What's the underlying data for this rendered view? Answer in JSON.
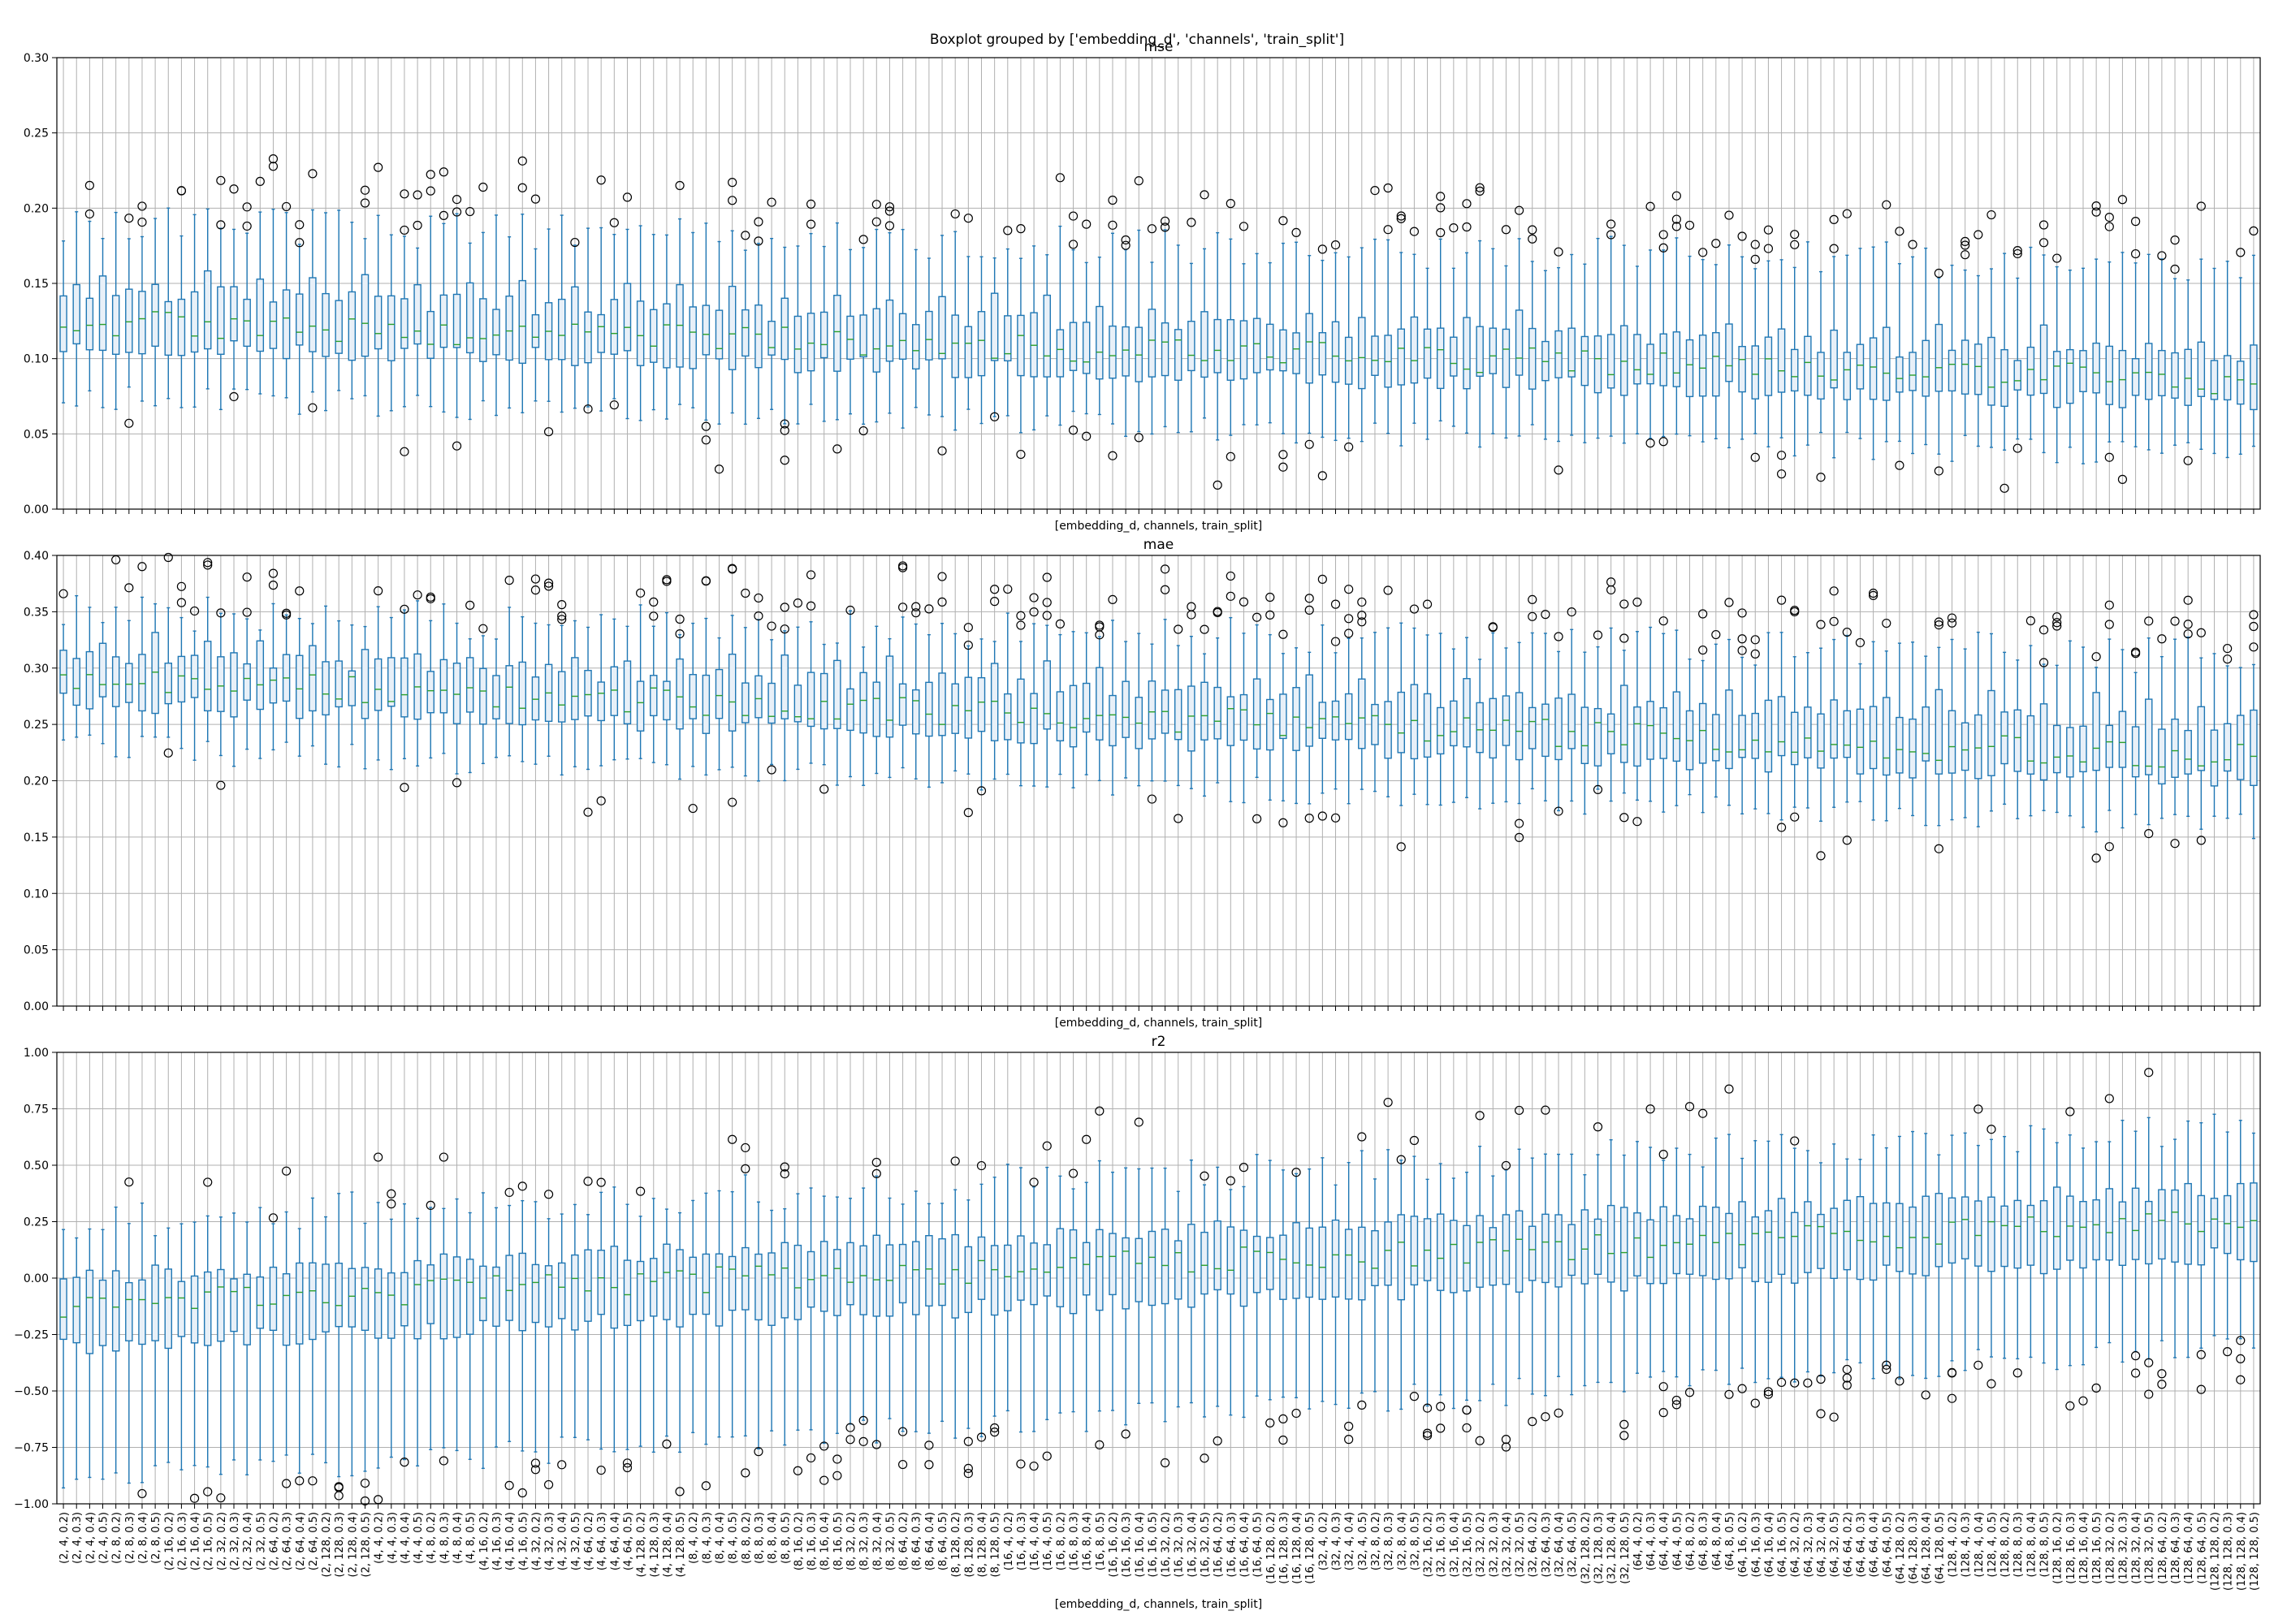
{
  "figure": {
    "suptitle": "Boxplot grouped by ['embedding_d', 'channels', 'train_split']"
  },
  "style": {
    "box_edge": "#1f77b4",
    "box_fill": "#e8f0f8",
    "median": "#2ca02c",
    "outlier": "#000000",
    "grid": "#b0b0b0"
  },
  "chart_data": [
    {
      "type": "box",
      "title": "mse",
      "xlabel": "[embedding_d, channels, train_split]",
      "ylabel": "",
      "ylim": [
        0.0,
        0.3
      ],
      "yticks": [
        "0.00",
        "0.05",
        "0.10",
        "0.15",
        "0.20",
        "0.25",
        "0.30"
      ],
      "grid": true,
      "trend": {
        "start": {
          "q1": 0.11,
          "median": 0.125,
          "q3": 0.145,
          "whislo": 0.075,
          "whishi": 0.19
        },
        "end": {
          "q1": 0.07,
          "median": 0.085,
          "q3": 0.1,
          "whislo": 0.035,
          "whishi": 0.16
        }
      }
    },
    {
      "type": "box",
      "title": "mae",
      "xlabel": "[embedding_d, channels, train_split]",
      "ylabel": "",
      "ylim": [
        0.0,
        0.4
      ],
      "yticks": [
        "0.00",
        "0.05",
        "0.10",
        "0.15",
        "0.20",
        "0.25",
        "0.30",
        "0.35",
        "0.40"
      ],
      "grid": true,
      "trend": {
        "start": {
          "q1": 0.27,
          "median": 0.29,
          "q3": 0.31,
          "whislo": 0.23,
          "whishi": 0.35
        },
        "end": {
          "q1": 0.2,
          "median": 0.22,
          "q3": 0.25,
          "whislo": 0.16,
          "whishi": 0.31
        }
      }
    },
    {
      "type": "box",
      "title": "r2",
      "xlabel": "[embedding_d, channels, train_split]",
      "ylabel": "",
      "ylim": [
        -1.0,
        1.0
      ],
      "yticks": [
        "−1.00",
        "−0.75",
        "−0.50",
        "−0.25",
        "0.00",
        "0.25",
        "0.50",
        "0.75",
        "1.00"
      ],
      "grid": true,
      "trend": {
        "start": {
          "q1": -0.3,
          "median": -0.12,
          "q3": 0.0,
          "whislo": -0.9,
          "whishi": 0.25
        },
        "end": {
          "q1": 0.1,
          "median": 0.25,
          "q3": 0.4,
          "whislo": -0.3,
          "whishi": 0.65
        }
      }
    }
  ],
  "categories": [
    "(2, 4, 0.2)",
    "(2, 4, 0.3)",
    "(2, 4, 0.4)",
    "(2, 4, 0.5)",
    "(2, 8, 0.2)",
    "(2, 8, 0.3)",
    "(2, 8, 0.4)",
    "(2, 8, 0.5)",
    "(2, 16, 0.2)",
    "(2, 16, 0.3)",
    "(2, 16, 0.4)",
    "(2, 16, 0.5)",
    "(2, 32, 0.2)",
    "(2, 32, 0.3)",
    "(2, 32, 0.4)",
    "(2, 32, 0.5)",
    "(2, 64, 0.2)",
    "(2, 64, 0.3)",
    "(2, 64, 0.4)",
    "(2, 64, 0.5)",
    "(2, 128, 0.2)",
    "(2, 128, 0.3)",
    "(2, 128, 0.4)",
    "(2, 128, 0.5)",
    "(4, 4, 0.2)",
    "(4, 4, 0.3)",
    "(4, 4, 0.4)",
    "(4, 4, 0.5)",
    "(4, 8, 0.2)",
    "(4, 8, 0.3)",
    "(4, 8, 0.4)",
    "(4, 8, 0.5)",
    "(4, 16, 0.2)",
    "(4, 16, 0.3)",
    "(4, 16, 0.4)",
    "(4, 16, 0.5)",
    "(4, 32, 0.2)",
    "(4, 32, 0.3)",
    "(4, 32, 0.4)",
    "(4, 32, 0.5)",
    "(4, 64, 0.2)",
    "(4, 64, 0.3)",
    "(4, 64, 0.4)",
    "(4, 64, 0.5)",
    "(4, 128, 0.2)",
    "(4, 128, 0.3)",
    "(4, 128, 0.4)",
    "(4, 128, 0.5)",
    "(8, 4, 0.2)",
    "(8, 4, 0.3)",
    "(8, 4, 0.4)",
    "(8, 4, 0.5)",
    "(8, 8, 0.2)",
    "(8, 8, 0.3)",
    "(8, 8, 0.4)",
    "(8, 8, 0.5)",
    "(8, 16, 0.2)",
    "(8, 16, 0.3)",
    "(8, 16, 0.4)",
    "(8, 16, 0.5)",
    "(8, 32, 0.2)",
    "(8, 32, 0.3)",
    "(8, 32, 0.4)",
    "(8, 32, 0.5)",
    "(8, 64, 0.2)",
    "(8, 64, 0.3)",
    "(8, 64, 0.4)",
    "(8, 64, 0.5)",
    "(8, 128, 0.2)",
    "(8, 128, 0.3)",
    "(8, 128, 0.4)",
    "(8, 128, 0.5)",
    "(16, 4, 0.2)",
    "(16, 4, 0.3)",
    "(16, 4, 0.4)",
    "(16, 4, 0.5)",
    "(16, 8, 0.2)",
    "(16, 8, 0.3)",
    "(16, 8, 0.4)",
    "(16, 8, 0.5)",
    "(16, 16, 0.2)",
    "(16, 16, 0.3)",
    "(16, 16, 0.4)",
    "(16, 16, 0.5)",
    "(16, 32, 0.2)",
    "(16, 32, 0.3)",
    "(16, 32, 0.4)",
    "(16, 32, 0.5)",
    "(16, 64, 0.2)",
    "(16, 64, 0.3)",
    "(16, 64, 0.4)",
    "(16, 64, 0.5)",
    "(16, 128, 0.2)",
    "(16, 128, 0.3)",
    "(16, 128, 0.4)",
    "(16, 128, 0.5)",
    "(32, 4, 0.2)",
    "(32, 4, 0.3)",
    "(32, 4, 0.4)",
    "(32, 4, 0.5)",
    "(32, 8, 0.2)",
    "(32, 8, 0.3)",
    "(32, 8, 0.4)",
    "(32, 8, 0.5)",
    "(32, 16, 0.2)",
    "(32, 16, 0.3)",
    "(32, 16, 0.4)",
    "(32, 16, 0.5)",
    "(32, 32, 0.2)",
    "(32, 32, 0.3)",
    "(32, 32, 0.4)",
    "(32, 32, 0.5)",
    "(32, 64, 0.2)",
    "(32, 64, 0.3)",
    "(32, 64, 0.4)",
    "(32, 64, 0.5)",
    "(32, 128, 0.2)",
    "(32, 128, 0.3)",
    "(32, 128, 0.4)",
    "(32, 128, 0.5)",
    "(64, 4, 0.2)",
    "(64, 4, 0.3)",
    "(64, 4, 0.4)",
    "(64, 4, 0.5)",
    "(64, 8, 0.2)",
    "(64, 8, 0.3)",
    "(64, 8, 0.4)",
    "(64, 8, 0.5)",
    "(64, 16, 0.2)",
    "(64, 16, 0.3)",
    "(64, 16, 0.4)",
    "(64, 16, 0.5)",
    "(64, 32, 0.2)",
    "(64, 32, 0.3)",
    "(64, 32, 0.4)",
    "(64, 32, 0.5)",
    "(64, 64, 0.2)",
    "(64, 64, 0.3)",
    "(64, 64, 0.4)",
    "(64, 64, 0.5)",
    "(64, 128, 0.2)",
    "(64, 128, 0.3)",
    "(64, 128, 0.4)",
    "(64, 128, 0.5)",
    "(128, 4, 0.2)",
    "(128, 4, 0.3)",
    "(128, 4, 0.4)",
    "(128, 4, 0.5)",
    "(128, 8, 0.2)",
    "(128, 8, 0.3)",
    "(128, 8, 0.4)",
    "(128, 8, 0.5)",
    "(128, 16, 0.2)",
    "(128, 16, 0.3)",
    "(128, 16, 0.4)",
    "(128, 16, 0.5)",
    "(128, 32, 0.2)",
    "(128, 32, 0.3)",
    "(128, 32, 0.4)",
    "(128, 32, 0.5)",
    "(128, 64, 0.2)",
    "(128, 64, 0.3)",
    "(128, 64, 0.4)",
    "(128, 64, 0.5)",
    "(128, 128, 0.2)",
    "(128, 128, 0.3)",
    "(128, 128, 0.4)",
    "(128, 128, 0.5)"
  ]
}
